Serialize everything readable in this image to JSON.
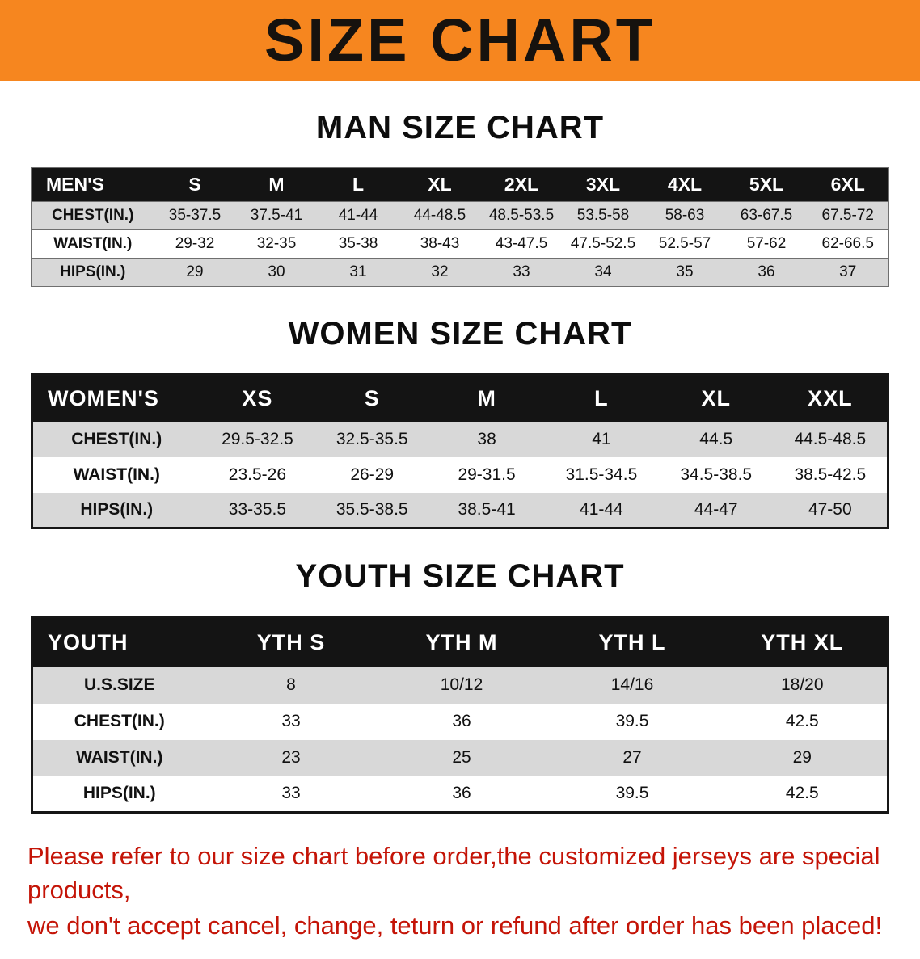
{
  "page": {
    "banner_title": "SIZE CHART",
    "footer_note_line1": "Please refer to our size chart before order,the customized jerseys are special products,",
    "footer_note_line2": "we don't accept cancel, change, teturn or refund after order has been placed!"
  },
  "colors": {
    "banner_orange": "#f6861f",
    "header_black": "#141414",
    "row_gray": "#d8d8d8",
    "note_red": "#c41407"
  },
  "chart_data": [
    {
      "type": "table",
      "title": "MAN SIZE CHART",
      "header": [
        "MEN'S",
        "S",
        "M",
        "L",
        "XL",
        "2XL",
        "3XL",
        "4XL",
        "5XL",
        "6XL"
      ],
      "rows": [
        [
          "CHEST(IN.)",
          "35-37.5",
          "37.5-41",
          "41-44",
          "44-48.5",
          "48.5-53.5",
          "53.5-58",
          "58-63",
          "63-67.5",
          "67.5-72"
        ],
        [
          "WAIST(IN.)",
          "29-32",
          "32-35",
          "35-38",
          "38-43",
          "43-47.5",
          "47.5-52.5",
          "52.5-57",
          "57-62",
          "62-66.5"
        ],
        [
          "HIPS(IN.)",
          "29",
          "30",
          "31",
          "32",
          "33",
          "34",
          "35",
          "36",
          "37"
        ]
      ]
    },
    {
      "type": "table",
      "title": "WOMEN SIZE CHART",
      "header": [
        "WOMEN'S",
        "XS",
        "S",
        "M",
        "L",
        "XL",
        "XXL"
      ],
      "rows": [
        [
          "CHEST(IN.)",
          "29.5-32.5",
          "32.5-35.5",
          "38",
          "41",
          "44.5",
          "44.5-48.5"
        ],
        [
          "WAIST(IN.)",
          "23.5-26",
          "26-29",
          "29-31.5",
          "31.5-34.5",
          "34.5-38.5",
          "38.5-42.5"
        ],
        [
          "HIPS(IN.)",
          "33-35.5",
          "35.5-38.5",
          "38.5-41",
          "41-44",
          "44-47",
          "47-50"
        ]
      ]
    },
    {
      "type": "table",
      "title": "YOUTH SIZE CHART",
      "header": [
        "YOUTH",
        "YTH S",
        "YTH M",
        "YTH L",
        "YTH XL"
      ],
      "rows": [
        [
          "U.S.SIZE",
          "8",
          "10/12",
          "14/16",
          "18/20"
        ],
        [
          "CHEST(IN.)",
          "33",
          "36",
          "39.5",
          "42.5"
        ],
        [
          "WAIST(IN.)",
          "23",
          "25",
          "27",
          "29"
        ],
        [
          "HIPS(IN.)",
          "33",
          "36",
          "39.5",
          "42.5"
        ]
      ]
    }
  ]
}
